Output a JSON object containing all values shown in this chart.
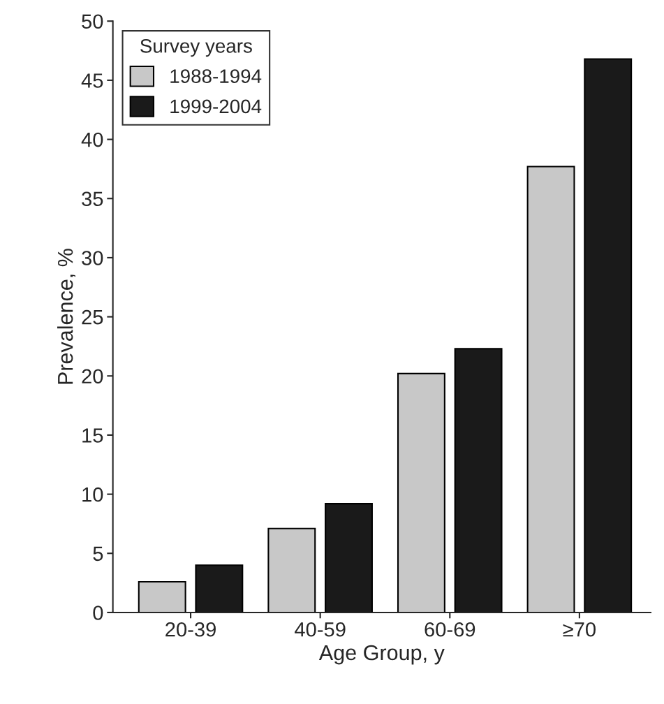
{
  "chart_data": {
    "type": "bar",
    "xlabel": "Age Group, y",
    "ylabel": "Prevalence, %",
    "legend_title": "Survey years",
    "categories": [
      "20-39",
      "40-59",
      "60-69",
      "≥70"
    ],
    "series": [
      {
        "name": "1988-1994",
        "color": "#c8c8c8",
        "values": [
          2.6,
          7.1,
          20.2,
          37.7
        ]
      },
      {
        "name": "1999-2004",
        "color": "#1a1a1a",
        "values": [
          4.0,
          9.2,
          22.3,
          46.8
        ]
      }
    ],
    "ylim": [
      0,
      50
    ],
    "yticks": [
      0,
      5,
      10,
      15,
      20,
      25,
      30,
      35,
      40,
      45,
      50
    ],
    "grid": false,
    "legend": "top left"
  }
}
